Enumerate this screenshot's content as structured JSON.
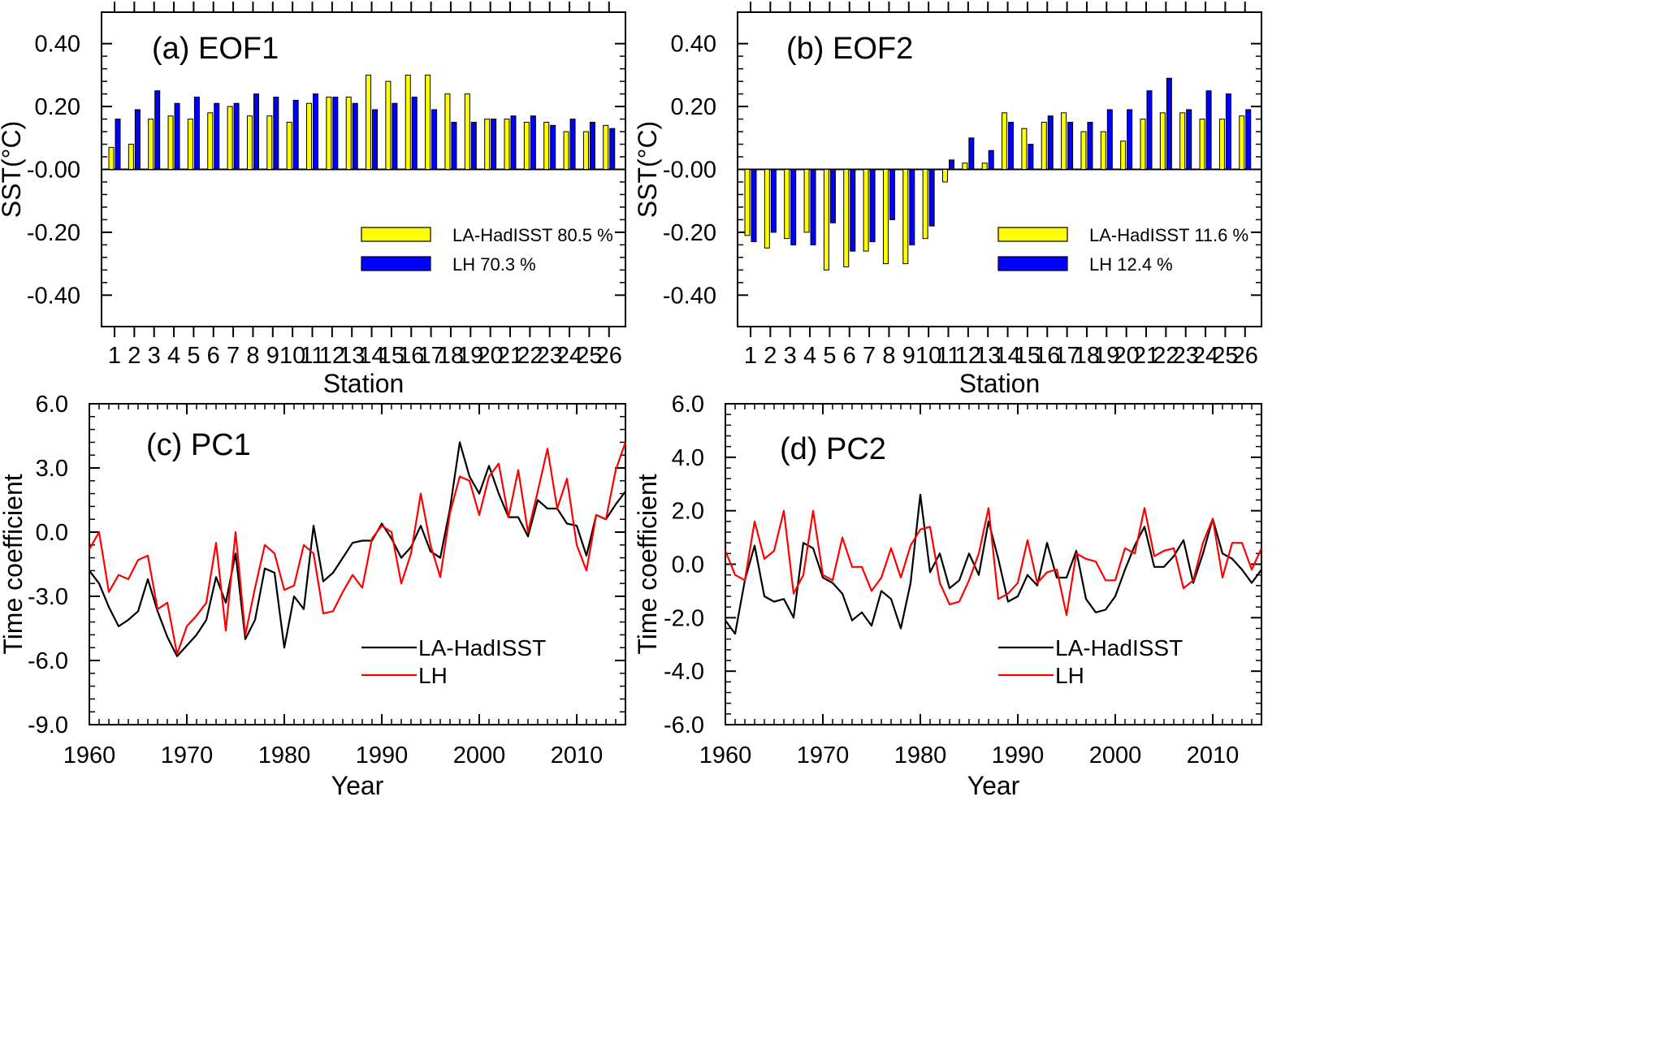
{
  "colors": {
    "la_hadisst_bar": "#ffff00",
    "lh_bar": "#0000ff",
    "la_hadisst_line": "#000000",
    "lh_line": "#ff0000"
  },
  "chart_data": [
    {
      "id": "eof1",
      "type": "bar",
      "title": "(a) EOF1",
      "xlabel": "Station",
      "ylabel": "SST(°C)",
      "ylim": [
        -0.5,
        0.5
      ],
      "yticks": [
        0.4,
        0.2,
        0.0,
        -0.2,
        -0.4
      ],
      "ytick_labels": [
        "0.40",
        "0.20",
        "-0.00",
        "-0.20",
        "-0.40"
      ],
      "categories": [
        "1",
        "2",
        "3",
        "4",
        "5",
        "6",
        "7",
        "8",
        "9",
        "10",
        "11",
        "12",
        "13",
        "14",
        "15",
        "16",
        "17",
        "18",
        "19",
        "20",
        "21",
        "22",
        "23",
        "24",
        "25",
        "26"
      ],
      "series": [
        {
          "name": "LA-HadISST",
          "legend_value": "80.5 %",
          "values": [
            0.07,
            0.08,
            0.16,
            0.17,
            0.16,
            0.18,
            0.2,
            0.17,
            0.17,
            0.15,
            0.21,
            0.23,
            0.23,
            0.3,
            0.28,
            0.3,
            0.3,
            0.24,
            0.24,
            0.16,
            0.16,
            0.15,
            0.15,
            0.12,
            0.12,
            0.14
          ]
        },
        {
          "name": "LH",
          "legend_value": "70.3 %",
          "values": [
            0.16,
            0.19,
            0.25,
            0.21,
            0.23,
            0.21,
            0.21,
            0.24,
            0.23,
            0.22,
            0.24,
            0.23,
            0.21,
            0.19,
            0.21,
            0.23,
            0.19,
            0.15,
            0.15,
            0.16,
            0.17,
            0.17,
            0.14,
            0.16,
            0.15,
            0.13
          ]
        }
      ],
      "grid": false,
      "legend": "lower-right"
    },
    {
      "id": "eof2",
      "type": "bar",
      "title": "(b) EOF2",
      "xlabel": "Station",
      "ylabel": "SST(°C)",
      "ylim": [
        -0.5,
        0.5
      ],
      "yticks": [
        0.4,
        0.2,
        0.0,
        -0.2,
        -0.4
      ],
      "ytick_labels": [
        "0.40",
        "0.20",
        "-0.00",
        "-0.20",
        "-0.40"
      ],
      "categories": [
        "1",
        "2",
        "3",
        "4",
        "5",
        "6",
        "7",
        "8",
        "9",
        "10",
        "11",
        "12",
        "13",
        "14",
        "15",
        "16",
        "17",
        "18",
        "19",
        "20",
        "21",
        "22",
        "23",
        "24",
        "25",
        "26"
      ],
      "series": [
        {
          "name": "LA-HadISST",
          "legend_value": "11.6 %",
          "values": [
            -0.21,
            -0.25,
            -0.22,
            -0.2,
            -0.32,
            -0.31,
            -0.26,
            -0.3,
            -0.3,
            -0.22,
            -0.04,
            0.02,
            0.02,
            0.18,
            0.13,
            0.15,
            0.18,
            0.12,
            0.12,
            0.09,
            0.16,
            0.18,
            0.18,
            0.16,
            0.16,
            0.17
          ]
        },
        {
          "name": "LH",
          "legend_value": "12.4 %",
          "values": [
            -0.23,
            -0.2,
            -0.24,
            -0.24,
            -0.17,
            -0.26,
            -0.23,
            -0.16,
            -0.24,
            -0.18,
            0.03,
            0.1,
            0.06,
            0.15,
            0.08,
            0.17,
            0.15,
            0.15,
            0.19,
            0.19,
            0.25,
            0.29,
            0.19,
            0.25,
            0.24,
            0.19
          ]
        }
      ],
      "grid": false,
      "legend": "lower-right"
    },
    {
      "id": "pc1",
      "type": "line",
      "title": "(c) PC1",
      "xlabel": "Year",
      "ylabel": "Time coefficient",
      "xlim": [
        1960,
        2015
      ],
      "ylim": [
        -9,
        6
      ],
      "xticks": [
        1960,
        1970,
        1980,
        1990,
        2000,
        2010
      ],
      "yticks": [
        6,
        3,
        0,
        -3,
        -6,
        -9
      ],
      "ytick_labels": [
        "6.0",
        "3.0",
        "0.0",
        "-3.0",
        "-6.0",
        "-9.0"
      ],
      "x": [
        1960,
        1961,
        1962,
        1963,
        1964,
        1965,
        1966,
        1967,
        1968,
        1969,
        1970,
        1971,
        1972,
        1973,
        1974,
        1975,
        1976,
        1977,
        1978,
        1979,
        1980,
        1981,
        1982,
        1983,
        1984,
        1985,
        1986,
        1987,
        1988,
        1989,
        1990,
        1991,
        1992,
        1993,
        1994,
        1995,
        1996,
        1997,
        1998,
        1999,
        2000,
        2001,
        2002,
        2003,
        2004,
        2005,
        2006,
        2007,
        2008,
        2009,
        2010,
        2011,
        2012,
        2013,
        2014,
        2015
      ],
      "series": [
        {
          "name": "LA-HadISST",
          "values": [
            -1.8,
            -2.4,
            -3.5,
            -4.4,
            -4.1,
            -3.7,
            -2.2,
            -3.7,
            -4.9,
            -5.8,
            -5.3,
            -4.8,
            -4.1,
            -2.1,
            -3.3,
            -1.0,
            -5.0,
            -4.1,
            -1.7,
            -1.9,
            -5.4,
            -3.0,
            -3.6,
            0.3,
            -2.3,
            -1.9,
            -1.2,
            -0.5,
            -0.4,
            -0.4,
            0.4,
            -0.3,
            -1.2,
            -0.7,
            0.3,
            -0.9,
            -1.2,
            1.1,
            4.2,
            2.6,
            1.8,
            3.1,
            1.8,
            0.7,
            0.7,
            -0.2,
            1.5,
            1.1,
            1.1,
            0.4,
            0.3,
            -1.1,
            0.8,
            0.6,
            1.3,
            1.9
          ]
        },
        {
          "name": "LH",
          "values": [
            -0.8,
            0.0,
            -2.8,
            -2.0,
            -2.2,
            -1.3,
            -1.1,
            -3.6,
            -3.3,
            -5.7,
            -4.4,
            -3.9,
            -3.3,
            -0.5,
            -4.6,
            0.0,
            -4.8,
            -2.6,
            -0.6,
            -1.0,
            -2.7,
            -2.5,
            -0.6,
            -1.0,
            -3.8,
            -3.7,
            -2.8,
            -2.0,
            -2.6,
            -0.3,
            0.3,
            0.0,
            -2.4,
            -1.0,
            1.8,
            -0.6,
            -2.1,
            0.9,
            2.6,
            2.4,
            0.8,
            2.6,
            3.2,
            0.7,
            2.9,
            0.0,
            1.9,
            3.9,
            1.1,
            2.5,
            -0.6,
            -1.8,
            0.8,
            0.6,
            2.9,
            4.2
          ]
        }
      ],
      "grid": false,
      "legend": "lower-center"
    },
    {
      "id": "pc2",
      "type": "line",
      "title": "(d) PC2",
      "xlabel": "Year",
      "ylabel": "Time coefficient",
      "xlim": [
        1960,
        2015
      ],
      "ylim": [
        -6,
        6
      ],
      "xticks": [
        1960,
        1970,
        1980,
        1990,
        2000,
        2010
      ],
      "yticks": [
        6,
        4,
        2,
        0,
        -2,
        -4,
        -6
      ],
      "ytick_labels": [
        "6.0",
        "4.0",
        "2.0",
        "0.0",
        "-2.0",
        "-4.0",
        "-6.0"
      ],
      "x": [
        1960,
        1961,
        1962,
        1963,
        1964,
        1965,
        1966,
        1967,
        1968,
        1969,
        1970,
        1971,
        1972,
        1973,
        1974,
        1975,
        1976,
        1977,
        1978,
        1979,
        1980,
        1981,
        1982,
        1983,
        1984,
        1985,
        1986,
        1987,
        1988,
        1989,
        1990,
        1991,
        1992,
        1993,
        1994,
        1995,
        1996,
        1997,
        1998,
        1999,
        2000,
        2001,
        2002,
        2003,
        2004,
        2005,
        2006,
        2007,
        2008,
        2009,
        2010,
        2011,
        2012,
        2013,
        2014,
        2015
      ],
      "series": [
        {
          "name": "LA-HadISST",
          "values": [
            -2.1,
            -2.6,
            -0.6,
            0.7,
            -1.2,
            -1.4,
            -1.3,
            -2.0,
            0.8,
            0.6,
            -0.5,
            -0.7,
            -1.1,
            -2.1,
            -1.8,
            -2.3,
            -1.0,
            -1.3,
            -2.4,
            -0.7,
            2.6,
            -0.3,
            0.4,
            -0.9,
            -0.6,
            0.4,
            -0.4,
            1.6,
            0.2,
            -1.4,
            -1.2,
            -0.4,
            -0.8,
            0.8,
            -0.5,
            -0.5,
            0.5,
            -1.3,
            -1.8,
            -1.7,
            -1.2,
            -0.2,
            0.7,
            1.4,
            -0.1,
            -0.1,
            0.3,
            0.9,
            -0.7,
            0.4,
            1.7,
            0.4,
            0.2,
            -0.2,
            -0.7,
            -0.2
          ]
        },
        {
          "name": "LH",
          "values": [
            0.5,
            -0.4,
            -0.6,
            1.6,
            0.2,
            0.5,
            2.0,
            -1.1,
            -0.4,
            2.0,
            -0.4,
            -0.6,
            1.0,
            -0.1,
            -0.1,
            -1.0,
            -0.5,
            0.6,
            -0.5,
            0.7,
            1.3,
            1.4,
            -0.7,
            -1.5,
            -1.4,
            -0.6,
            0.4,
            2.1,
            -1.3,
            -1.1,
            -0.7,
            0.9,
            -0.7,
            -0.3,
            -0.2,
            -1.9,
            0.4,
            0.2,
            0.1,
            -0.6,
            -0.6,
            0.6,
            0.4,
            2.1,
            0.3,
            0.5,
            0.6,
            -0.9,
            -0.6,
            0.8,
            1.7,
            -0.5,
            0.8,
            0.8,
            -0.2,
            0.6
          ]
        }
      ],
      "grid": false,
      "legend": "lower-center"
    }
  ]
}
